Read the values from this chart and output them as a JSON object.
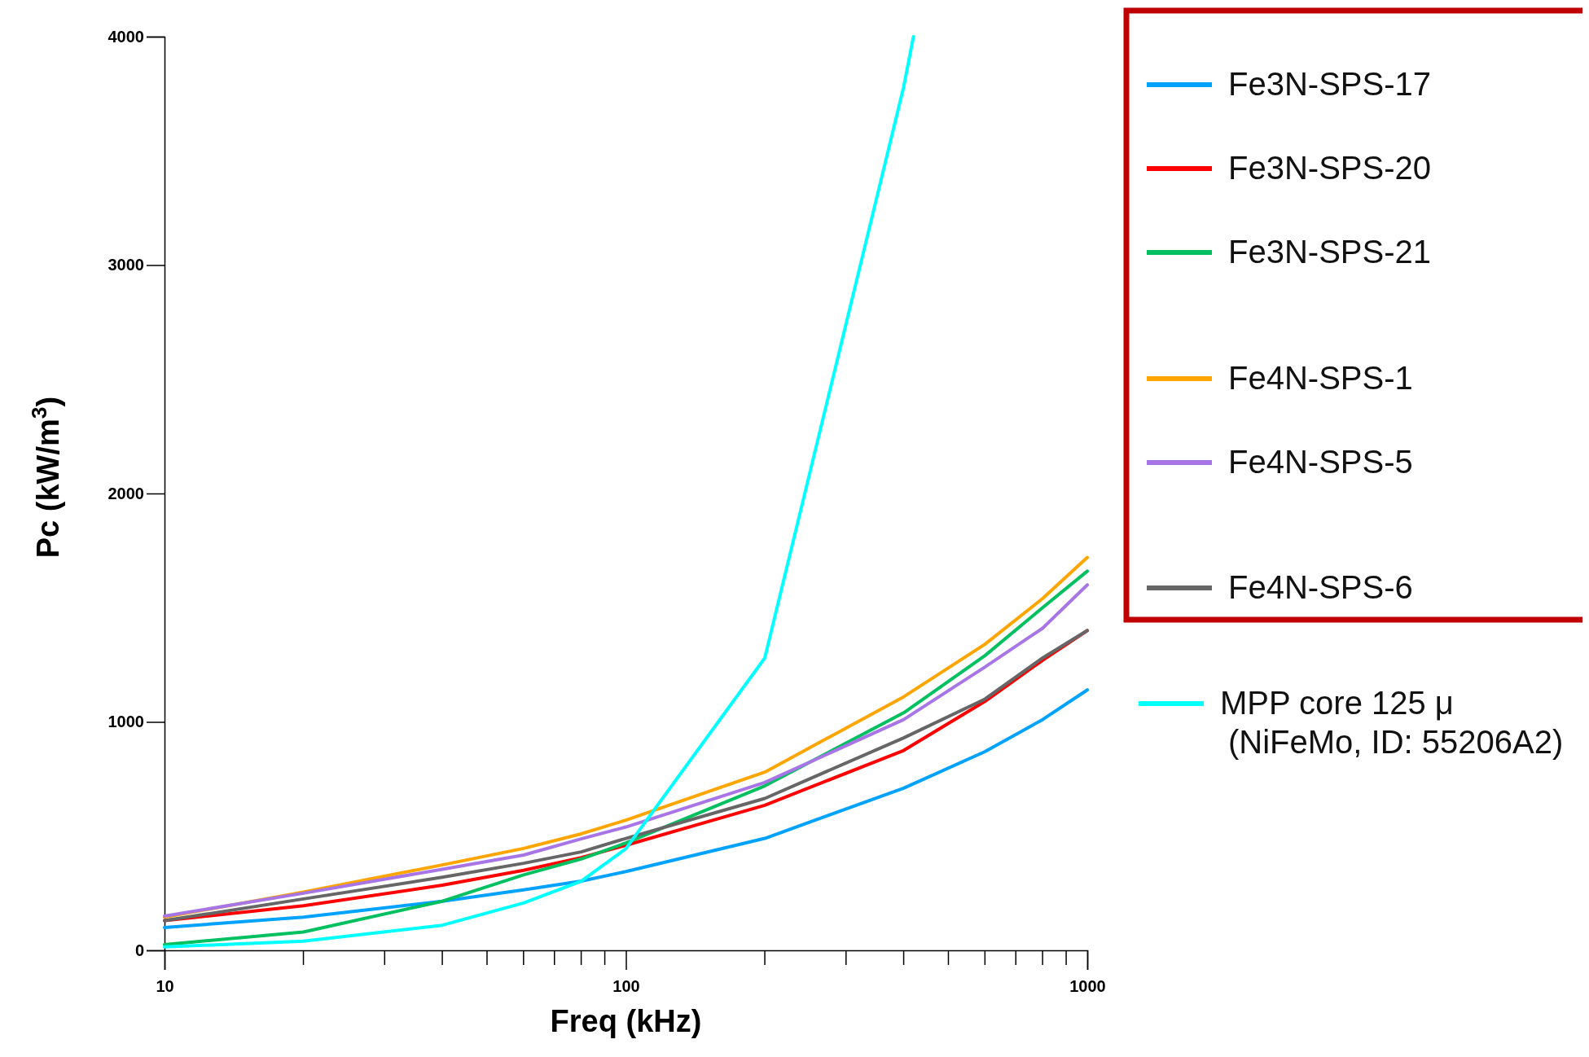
{
  "chart_data": {
    "type": "line",
    "xlabel": "Freq (kHz)",
    "ylabel": "Pc (kW/m$^{3}$)",
    "log": "x",
    "xlim": [
      10,
      1000
    ],
    "ylim": [
      0,
      4000
    ],
    "xticks": [
      10,
      100,
      1000
    ],
    "yticks": [
      0,
      1000,
      2000,
      3000,
      4000
    ],
    "grid": false,
    "legend": "right",
    "marker": "none",
    "line_style": "solid",
    "x": [
      10,
      20,
      40,
      60,
      80,
      100,
      200,
      400,
      600,
      800,
      1000
    ],
    "series": [
      {
        "name": "Fe3N-SPS-17",
        "color": "#00a2ff",
        "values": [
          100,
          145,
          215,
          265,
          303,
          345,
          490,
          710,
          870,
          1010,
          1140
        ]
      },
      {
        "name": "Fe3N-SPS-20",
        "color": "#ff0000",
        "values": [
          130,
          195,
          285,
          350,
          406,
          460,
          635,
          875,
          1090,
          1270,
          1400
        ]
      },
      {
        "name": "Fe3N-SPS-21",
        "color": "#00c060",
        "values": [
          25,
          80,
          215,
          330,
          400,
          470,
          720,
          1040,
          1290,
          1500,
          1660
        ]
      },
      {
        "name": "Fe4N-SPS-1",
        "color": "#ffa500",
        "values": [
          145,
          255,
          374,
          446,
          510,
          570,
          780,
          1110,
          1340,
          1540,
          1720
        ]
      },
      {
        "name": "Fe4N-SPS-5",
        "color": "#a875e6",
        "values": [
          150,
          250,
          355,
          417,
          488,
          540,
          735,
          1010,
          1240,
          1410,
          1600
        ]
      },
      {
        "name": "Fe4N-SPS-6",
        "color": "#666666",
        "values": [
          130,
          225,
          320,
          381,
          431,
          490,
          665,
          930,
          1100,
          1280,
          1400
        ]
      },
      {
        "name": "MPP core 125 μ\n (NiFeMo, ID: 55206A2)",
        "color": "#00ffff",
        "x": [
          10,
          20,
          40,
          60,
          80,
          100,
          200,
          400,
          420
        ],
        "values": [
          15,
          40,
          110,
          207,
          303,
          445,
          1280,
          3780,
          4000
        ]
      }
    ]
  }
}
